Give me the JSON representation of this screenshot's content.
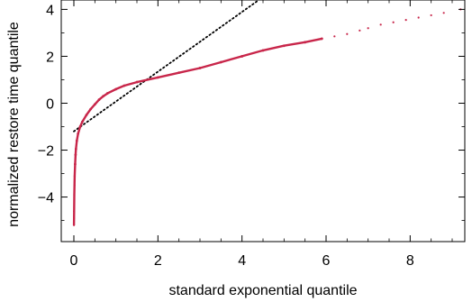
{
  "chart_data": {
    "type": "scatter",
    "title": "",
    "xlabel": "standard exponential quantile",
    "ylabel": "normalized restore time quantile",
    "xlim": [
      -0.3,
      9.3
    ],
    "ylim": [
      -5.9,
      4.4
    ],
    "xticks": [
      0,
      2,
      4,
      6,
      8
    ],
    "yticks": [
      4,
      2,
      0,
      -2,
      -4
    ],
    "xtick_labels": [
      "0",
      "2",
      "4",
      "6",
      "8"
    ],
    "ytick_labels": [
      "4",
      "2",
      "0",
      "−2",
      "−4"
    ],
    "grid": false,
    "legend": "none",
    "colors": {
      "points": "#c8264a",
      "reference": "#000000",
      "frame": "#000000"
    },
    "series": [
      {
        "kind": "points",
        "x": [
          0.002,
          0.004,
          0.006,
          0.01,
          0.015,
          0.02,
          0.03,
          0.04,
          0.05,
          0.07,
          0.1,
          0.15,
          0.2,
          0.3,
          0.4,
          0.5,
          0.6,
          0.7,
          0.8,
          1.0,
          1.2,
          1.5,
          2.0,
          2.5,
          3.0,
          3.5,
          4.0,
          4.5,
          5.0,
          5.5,
          5.9,
          6.2,
          6.5,
          6.8,
          7.0,
          7.3,
          7.6,
          7.9,
          8.2,
          8.5,
          8.8,
          9.2
        ],
        "y": [
          -5.2,
          -4.9,
          -4.6,
          -3.9,
          -3.5,
          -3.1,
          -2.6,
          -2.2,
          -1.95,
          -1.6,
          -1.3,
          -1.0,
          -0.8,
          -0.5,
          -0.25,
          -0.05,
          0.15,
          0.3,
          0.42,
          0.6,
          0.75,
          0.9,
          1.1,
          1.3,
          1.5,
          1.75,
          2.0,
          2.25,
          2.45,
          2.6,
          2.75,
          2.85,
          2.95,
          3.1,
          3.2,
          3.35,
          3.45,
          3.55,
          3.65,
          3.75,
          3.85,
          4.0
        ]
      },
      {
        "kind": "reference-line",
        "x": [
          0,
          4.4
        ],
        "y": [
          -1.2,
          4.4
        ]
      }
    ]
  }
}
